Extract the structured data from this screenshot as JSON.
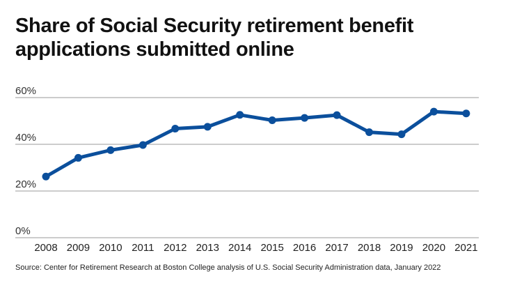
{
  "chart_data": {
    "type": "line",
    "title": "Share of Social Security retirement benefit applications submitted online",
    "categories": [
      "2008",
      "2009",
      "2010",
      "2011",
      "2012",
      "2013",
      "2014",
      "2015",
      "2016",
      "2017",
      "2018",
      "2019",
      "2020",
      "2021"
    ],
    "series": [
      {
        "values": [
          26.2,
          34.2,
          37.5,
          39.7,
          46.7,
          47.5,
          52.6,
          50.3,
          51.3,
          52.5,
          45.2,
          44.3,
          54.0,
          53.2
        ]
      }
    ],
    "yticks": [
      "0%",
      "20%",
      "40%",
      "60%"
    ],
    "ytick_values": [
      0,
      20,
      40,
      60
    ],
    "ylim": [
      0,
      60
    ],
    "grid": true,
    "color": "#0b4f9c",
    "source": "Source: Center for Retirement Research at Boston College analysis of U.S. Social Security Administration data, January 2022"
  }
}
